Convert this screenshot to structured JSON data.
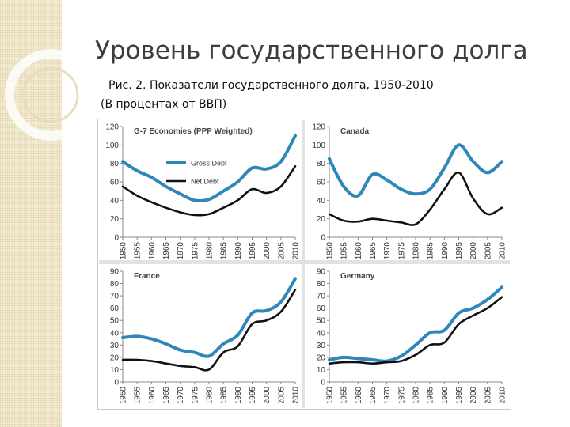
{
  "slide": {
    "title": "Уровень государственного долга",
    "caption": "Рис. 2. Показатели государственного долга, 1950-2010",
    "unit_note": "(В процентах от ВВП)"
  },
  "colors": {
    "gross": "#2f86b8",
    "net": "#111111",
    "axis": "#888888",
    "tick_text": "#333333"
  },
  "chart_data": [
    {
      "type": "line",
      "title": "G-7 Economies (PPP Weighted)",
      "categories": [
        "1950",
        "1955",
        "1960",
        "1965",
        "1970",
        "1975",
        "1980",
        "1985",
        "1990",
        "1995",
        "2000",
        "2005",
        "2010"
      ],
      "x": [
        1950,
        1955,
        1960,
        1965,
        1970,
        1975,
        1980,
        1985,
        1990,
        1995,
        2000,
        2005,
        2010
      ],
      "yticks": [
        "0",
        "20",
        "40",
        "60",
        "80",
        "100",
        "120"
      ],
      "ylim": [
        0,
        120
      ],
      "legend": [
        "Gross Debt",
        "Net Debt"
      ],
      "legend_position": "center-left",
      "series": [
        {
          "name": "Gross Debt",
          "values": [
            82,
            72,
            65,
            55,
            47,
            40,
            41,
            50,
            60,
            75,
            74,
            82,
            110
          ]
        },
        {
          "name": "Net Debt",
          "values": [
            55,
            45,
            38,
            32,
            27,
            24,
            25,
            32,
            40,
            52,
            48,
            55,
            77
          ]
        }
      ]
    },
    {
      "type": "line",
      "title": "Canada",
      "categories": [
        "1950",
        "1955",
        "1960",
        "1965",
        "1970",
        "1975",
        "1980",
        "1985",
        "1990",
        "1995",
        "2000",
        "2005",
        "2010"
      ],
      "x": [
        1950,
        1955,
        1960,
        1965,
        1970,
        1975,
        1980,
        1985,
        1990,
        1995,
        2000,
        2005,
        2010
      ],
      "yticks": [
        "0",
        "20",
        "40",
        "60",
        "80",
        "100",
        "120"
      ],
      "ylim": [
        0,
        120
      ],
      "legend": [],
      "series": [
        {
          "name": "Gross Debt",
          "values": [
            85,
            55,
            45,
            68,
            62,
            52,
            47,
            52,
            75,
            100,
            82,
            70,
            82
          ]
        },
        {
          "name": "Net Debt",
          "values": [
            25,
            18,
            17,
            20,
            18,
            16,
            14,
            30,
            52,
            70,
            42,
            25,
            32
          ]
        }
      ]
    },
    {
      "type": "line",
      "title": "France",
      "categories": [
        "1950",
        "1955",
        "1960",
        "1965",
        "1970",
        "1975",
        "1980",
        "1985",
        "1990",
        "1995",
        "2000",
        "2005",
        "2010"
      ],
      "x": [
        1950,
        1955,
        1960,
        1965,
        1970,
        1975,
        1980,
        1985,
        1990,
        1995,
        2000,
        2005,
        2010
      ],
      "yticks": [
        "0",
        "10",
        "20",
        "30",
        "40",
        "50",
        "60",
        "70",
        "80",
        "90"
      ],
      "ylim": [
        0,
        90
      ],
      "legend": [],
      "series": [
        {
          "name": "Gross Debt",
          "values": [
            36,
            37,
            35,
            31,
            26,
            24,
            21,
            31,
            38,
            56,
            58,
            65,
            84
          ]
        },
        {
          "name": "Net Debt",
          "values": [
            18,
            18,
            17,
            15,
            13,
            12,
            10,
            24,
            29,
            47,
            50,
            57,
            75
          ]
        }
      ]
    },
    {
      "type": "line",
      "title": "Germany",
      "categories": [
        "1950",
        "1955",
        "1960",
        "1965",
        "1970",
        "1975",
        "1980",
        "1985",
        "1990",
        "1995",
        "2000",
        "2005",
        "2010"
      ],
      "x": [
        1950,
        1955,
        1960,
        1965,
        1970,
        1975,
        1980,
        1985,
        1990,
        1995,
        2000,
        2005,
        2010
      ],
      "yticks": [
        "0",
        "10",
        "20",
        "30",
        "40",
        "50",
        "60",
        "70",
        "80",
        "90"
      ],
      "ylim": [
        0,
        90
      ],
      "legend": [],
      "series": [
        {
          "name": "Gross Debt",
          "values": [
            18,
            20,
            19,
            18,
            17,
            21,
            30,
            40,
            42,
            56,
            60,
            67,
            77
          ]
        },
        {
          "name": "Net Debt",
          "values": [
            15,
            16,
            16,
            15,
            16,
            17,
            22,
            30,
            32,
            47,
            54,
            60,
            69
          ]
        }
      ]
    }
  ]
}
